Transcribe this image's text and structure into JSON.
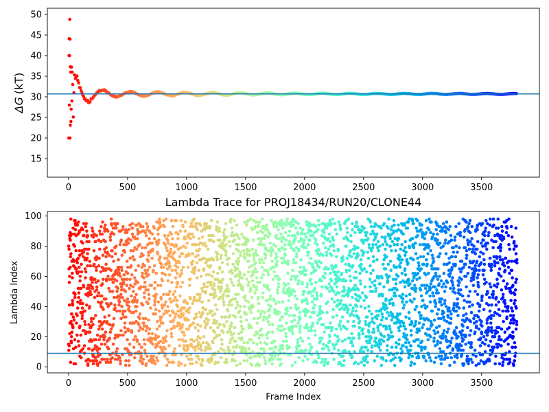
{
  "chart_data": [
    {
      "type": "scatter",
      "title": "",
      "xlabel": "",
      "ylabel_symbol": "ΔG",
      "ylabel_unit": "(kT)",
      "xlim": [
        -180,
        3990
      ],
      "ylim": [
        10.5,
        51.5
      ],
      "xticks": [
        0,
        500,
        1000,
        1500,
        2000,
        2500,
        3000,
        3500
      ],
      "yticks": [
        15,
        20,
        25,
        30,
        35,
        40,
        45,
        50
      ],
      "colormap": "rainbow",
      "color_scale": "frame index, red (early) to violet (late)",
      "hline": 30.7,
      "hline_color": "#1f77b4",
      "grid": false,
      "n_frames": 3800,
      "convergence": {
        "final_value": 30.7,
        "initial_points": [
          {
            "x": 10,
            "y": 48.8
          },
          {
            "x": 5,
            "y": 44.1
          },
          {
            "x": 12,
            "y": 44.0
          },
          {
            "x": 3,
            "y": 40.0
          },
          {
            "x": 8,
            "y": 40.0
          },
          {
            "x": 15,
            "y": 37.3
          },
          {
            "x": 25,
            "y": 37.2
          },
          {
            "x": 18,
            "y": 36.0
          },
          {
            "x": 30,
            "y": 36.0
          },
          {
            "x": 6,
            "y": 28.0
          },
          {
            "x": 22,
            "y": 27.0
          },
          {
            "x": 40,
            "y": 25.1
          },
          {
            "x": 20,
            "y": 24.0
          },
          {
            "x": 14,
            "y": 23.1
          },
          {
            "x": 2,
            "y": 20.0
          },
          {
            "x": 7,
            "y": 20.0
          },
          {
            "x": 12,
            "y": 20.0
          },
          {
            "x": 35,
            "y": 33.0
          },
          {
            "x": 45,
            "y": 31.0
          },
          {
            "x": 28,
            "y": 29.0
          }
        ],
        "amplitude_by_frame": [
          {
            "x": 50,
            "amp": 5.5
          },
          {
            "x": 100,
            "amp": 3.5
          },
          {
            "x": 200,
            "amp": 1.8
          },
          {
            "x": 300,
            "amp": 1.1
          },
          {
            "x": 500,
            "amp": 0.7
          },
          {
            "x": 1000,
            "amp": 0.45
          },
          {
            "x": 2000,
            "amp": 0.2
          },
          {
            "x": 3800,
            "amp": 0.12
          }
        ]
      }
    },
    {
      "type": "scatter",
      "title": "Lambda Trace for PROJ18434/RUN20/CLONE44",
      "xlabel": "Frame Index",
      "ylabel": "Lambda Index",
      "xlim": [
        -180,
        3990
      ],
      "ylim": [
        -4,
        103
      ],
      "xticks": [
        0,
        500,
        1000,
        1500,
        2000,
        2500,
        3000,
        3500
      ],
      "yticks": [
        0,
        20,
        40,
        60,
        80,
        100
      ],
      "colormap": "rainbow",
      "hline": 9,
      "hline_color": "#1f77b4",
      "grid": false,
      "n_frames": 3800,
      "lambda_range": [
        1,
        98
      ],
      "distribution": "approximately uniform over lambda indices 1–98 for all frames"
    }
  ]
}
